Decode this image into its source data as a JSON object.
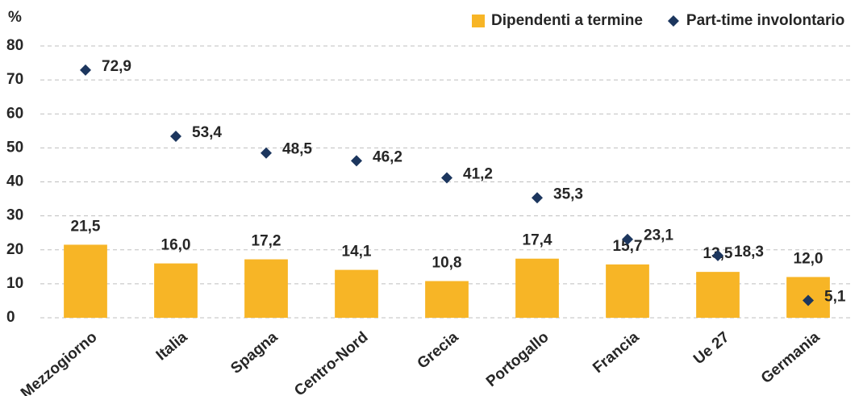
{
  "chart_data": {
    "type": "bar+scatter",
    "y_label": "%",
    "categories": [
      "Mezzogiorno",
      "Italia",
      "Spagna",
      "Centro-Nord",
      "Grecia",
      "Portogallo",
      "Francia",
      "Ue 27",
      "Germania"
    ],
    "series": [
      {
        "name": "Dipendenti a termine",
        "type": "bar",
        "color": "#f7b526",
        "values": [
          21.5,
          16.0,
          17.2,
          14.1,
          10.8,
          17.4,
          15.7,
          13.5,
          12.0
        ],
        "value_labels": [
          "21,5",
          "16,0",
          "17,2",
          "14,1",
          "10,8",
          "17,4",
          "15,7",
          "13,5",
          "12,0"
        ]
      },
      {
        "name": "Part-time involontario",
        "type": "scatter",
        "color": "#1c365e",
        "values": [
          72.9,
          53.4,
          48.5,
          46.2,
          41.2,
          35.3,
          23.1,
          18.3,
          5.1
        ],
        "value_labels": [
          "72,9",
          "53,4",
          "48,5",
          "46,2",
          "41,2",
          "35,3",
          "23,1",
          "18,3",
          "5,1"
        ]
      }
    ],
    "ylim": [
      0,
      80
    ],
    "yticks": [
      0,
      10,
      20,
      30,
      40,
      50,
      60,
      70,
      80
    ],
    "grid": true,
    "legend": "top-right"
  }
}
